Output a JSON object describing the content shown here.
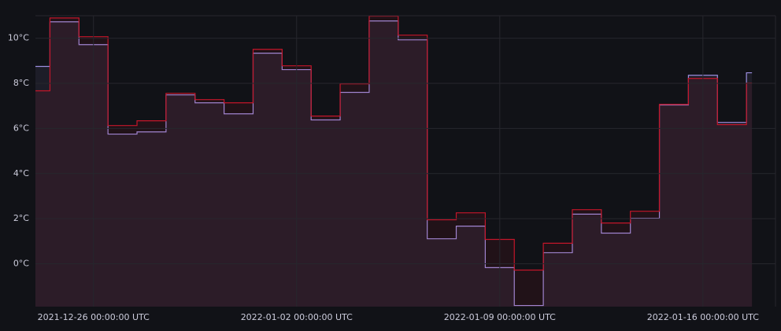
{
  "chart_data": {
    "type": "line",
    "step": true,
    "x": [
      "2021-12-23 12:00:00 UTC",
      "2021-12-24 12:00:00 UTC",
      "2021-12-25 12:00:00 UTC",
      "2021-12-26 12:00:00 UTC",
      "2021-12-27 12:00:00 UTC",
      "2021-12-28 12:00:00 UTC",
      "2021-12-29 12:00:00 UTC",
      "2021-12-30 12:00:00 UTC",
      "2021-12-31 12:00:00 UTC",
      "2022-01-01 12:00:00 UTC",
      "2022-01-02 12:00:00 UTC",
      "2022-01-03 12:00:00 UTC",
      "2022-01-04 12:00:00 UTC",
      "2022-01-05 12:00:00 UTC",
      "2022-01-06 12:00:00 UTC",
      "2022-01-07 12:00:00 UTC",
      "2022-01-08 12:00:00 UTC",
      "2022-01-09 12:00:00 UTC",
      "2022-01-10 12:00:00 UTC",
      "2022-01-11 12:00:00 UTC",
      "2022-01-12 12:00:00 UTC",
      "2022-01-13 12:00:00 UTC",
      "2022-01-14 12:00:00 UTC",
      "2022-01-15 12:00:00 UTC",
      "2022-01-16 12:00:00 UTC",
      "2022-01-17 12:00:00 UTC"
    ],
    "series": [
      {
        "color": "#9d8fe0",
        "values": [
          8.75,
          10.73,
          9.72,
          5.75,
          5.85,
          7.49,
          7.14,
          6.65,
          9.34,
          8.61,
          6.38,
          7.6,
          10.77,
          9.93,
          1.11,
          1.67,
          -0.17,
          -1.85,
          0.49,
          2.2,
          1.36,
          2.02,
          7.04,
          8.36,
          6.27,
          8.47
        ]
      },
      {
        "color": "#c4162a",
        "values": [
          7.67,
          10.9,
          10.07,
          6.13,
          6.34,
          7.56,
          7.28,
          7.14,
          9.51,
          8.78,
          6.55,
          7.98,
          10.98,
          10.14,
          1.95,
          2.26,
          1.08,
          -0.28,
          0.91,
          2.4,
          1.81,
          2.33,
          7.07,
          8.22,
          6.17,
          8.01
        ]
      }
    ],
    "xlim": [
      "2021-12-24 00:00:00 UTC",
      "2022-01-18 12:00:00 UTC"
    ],
    "xticks": [
      "2021-12-26 00:00:00 UTC",
      "2022-01-02 00:00:00 UTC",
      "2022-01-09 00:00:00 UTC",
      "2022-01-16 00:00:00 UTC"
    ],
    "ylim": [
      -1.9,
      11
    ],
    "yticks": [
      {
        "value": 0,
        "label": "0°C"
      },
      {
        "value": 2,
        "label": "2°C"
      },
      {
        "value": 4,
        "label": "4°C"
      },
      {
        "value": 6,
        "label": "6°C"
      },
      {
        "value": 8,
        "label": "8°C"
      },
      {
        "value": 10,
        "label": "10°C"
      }
    ],
    "grid": true
  }
}
